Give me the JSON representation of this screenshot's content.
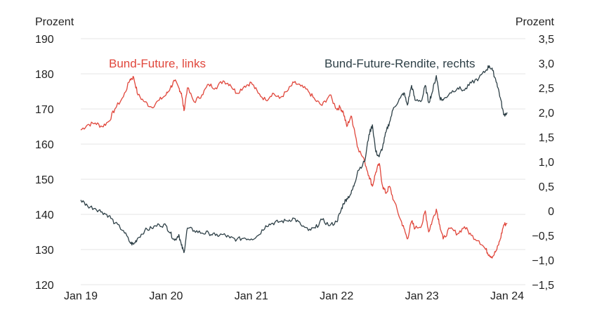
{
  "chart_data": {
    "type": "line",
    "y_left_label": "Prozent",
    "y_right_label": "Prozent",
    "x_ticks": [
      "Jan 19",
      "Jan 20",
      "Jan 21",
      "Jan 22",
      "Jan 23",
      "Jan 24"
    ],
    "y_left_ticks": [
      "190",
      "180",
      "170",
      "160",
      "150",
      "140",
      "130",
      "120"
    ],
    "y_right_ticks": [
      "3,5",
      "3,0",
      "2,5",
      "2,0",
      "1,5",
      "1,0",
      "0,5",
      "0",
      "−0,5",
      "−1,0",
      "−1,5"
    ],
    "ylim_left": [
      120,
      190
    ],
    "ylim_right": [
      -1.5,
      3.5
    ],
    "xlim": [
      2019.0,
      2024.0
    ],
    "grid": true,
    "series": [
      {
        "name": "Bund-Future, links",
        "axis": "left",
        "color": "#e0463b",
        "points": [
          [
            2019.0,
            164.0
          ],
          [
            2019.08,
            165.5
          ],
          [
            2019.17,
            166.0
          ],
          [
            2019.25,
            165.0
          ],
          [
            2019.33,
            166.5
          ],
          [
            2019.4,
            170.0
          ],
          [
            2019.5,
            173.5
          ],
          [
            2019.58,
            178.5
          ],
          [
            2019.62,
            179.0
          ],
          [
            2019.67,
            174.0
          ],
          [
            2019.75,
            172.0
          ],
          [
            2019.83,
            170.5
          ],
          [
            2019.92,
            172.5
          ],
          [
            2020.0,
            174.0
          ],
          [
            2020.05,
            176.0
          ],
          [
            2020.1,
            178.0
          ],
          [
            2020.15,
            176.0
          ],
          [
            2020.18,
            174.5
          ],
          [
            2020.21,
            169.5
          ],
          [
            2020.25,
            176.0
          ],
          [
            2020.33,
            172.0
          ],
          [
            2020.42,
            174.0
          ],
          [
            2020.5,
            177.0
          ],
          [
            2020.58,
            176.0
          ],
          [
            2020.67,
            178.0
          ],
          [
            2020.75,
            177.0
          ],
          [
            2020.83,
            174.5
          ],
          [
            2020.92,
            176.5
          ],
          [
            2021.0,
            177.5
          ],
          [
            2021.08,
            174.5
          ],
          [
            2021.17,
            172.5
          ],
          [
            2021.25,
            174.5
          ],
          [
            2021.33,
            173.0
          ],
          [
            2021.42,
            175.0
          ],
          [
            2021.5,
            177.5
          ],
          [
            2021.58,
            176.5
          ],
          [
            2021.67,
            175.0
          ],
          [
            2021.75,
            172.5
          ],
          [
            2021.83,
            171.0
          ],
          [
            2021.92,
            174.0
          ],
          [
            2022.0,
            170.0
          ],
          [
            2022.04,
            170.5
          ],
          [
            2022.08,
            169.0
          ],
          [
            2022.12,
            165.0
          ],
          [
            2022.17,
            168.0
          ],
          [
            2022.21,
            164.0
          ],
          [
            2022.25,
            159.0
          ],
          [
            2022.33,
            155.0
          ],
          [
            2022.38,
            151.0
          ],
          [
            2022.42,
            148.0
          ],
          [
            2022.46,
            152.0
          ],
          [
            2022.5,
            154.5
          ],
          [
            2022.54,
            148.0
          ],
          [
            2022.58,
            146.0
          ],
          [
            2022.62,
            148.0
          ],
          [
            2022.67,
            144.0
          ],
          [
            2022.75,
            138.5
          ],
          [
            2022.79,
            136.0
          ],
          [
            2022.83,
            133.0
          ],
          [
            2022.88,
            138.0
          ],
          [
            2022.92,
            136.0
          ],
          [
            2023.0,
            137.0
          ],
          [
            2023.04,
            141.0
          ],
          [
            2023.08,
            135.0
          ],
          [
            2023.12,
            138.0
          ],
          [
            2023.17,
            141.5
          ],
          [
            2023.21,
            137.0
          ],
          [
            2023.25,
            133.0
          ],
          [
            2023.33,
            136.0
          ],
          [
            2023.42,
            134.5
          ],
          [
            2023.5,
            136.5
          ],
          [
            2023.58,
            134.0
          ],
          [
            2023.67,
            132.5
          ],
          [
            2023.75,
            130.0
          ],
          [
            2023.79,
            128.5
          ],
          [
            2023.83,
            128.0
          ],
          [
            2023.88,
            130.0
          ],
          [
            2023.92,
            133.0
          ],
          [
            2023.96,
            137.0
          ],
          [
            2024.0,
            137.5
          ]
        ]
      },
      {
        "name": "Bund-Future-Rendite, rechts",
        "axis": "right",
        "color": "#2e4047",
        "points": [
          [
            2019.0,
            0.22
          ],
          [
            2019.08,
            0.1
          ],
          [
            2019.17,
            0.05
          ],
          [
            2019.25,
            -0.02
          ],
          [
            2019.33,
            -0.1
          ],
          [
            2019.4,
            -0.25
          ],
          [
            2019.5,
            -0.4
          ],
          [
            2019.58,
            -0.65
          ],
          [
            2019.62,
            -0.68
          ],
          [
            2019.67,
            -0.55
          ],
          [
            2019.75,
            -0.4
          ],
          [
            2019.83,
            -0.35
          ],
          [
            2019.92,
            -0.28
          ],
          [
            2020.0,
            -0.3
          ],
          [
            2020.05,
            -0.45
          ],
          [
            2020.1,
            -0.6
          ],
          [
            2020.15,
            -0.48
          ],
          [
            2020.18,
            -0.7
          ],
          [
            2020.21,
            -0.85
          ],
          [
            2020.25,
            -0.35
          ],
          [
            2020.33,
            -0.4
          ],
          [
            2020.42,
            -0.45
          ],
          [
            2020.5,
            -0.45
          ],
          [
            2020.58,
            -0.5
          ],
          [
            2020.67,
            -0.48
          ],
          [
            2020.75,
            -0.55
          ],
          [
            2020.83,
            -0.58
          ],
          [
            2020.92,
            -0.55
          ],
          [
            2021.0,
            -0.57
          ],
          [
            2021.08,
            -0.5
          ],
          [
            2021.17,
            -0.3
          ],
          [
            2021.25,
            -0.25
          ],
          [
            2021.33,
            -0.22
          ],
          [
            2021.42,
            -0.2
          ],
          [
            2021.5,
            -0.15
          ],
          [
            2021.58,
            -0.28
          ],
          [
            2021.67,
            -0.4
          ],
          [
            2021.75,
            -0.35
          ],
          [
            2021.83,
            -0.18
          ],
          [
            2021.92,
            -0.3
          ],
          [
            2022.0,
            -0.22
          ],
          [
            2022.04,
            -0.05
          ],
          [
            2022.08,
            0.15
          ],
          [
            2022.12,
            0.25
          ],
          [
            2022.17,
            0.35
          ],
          [
            2022.21,
            0.55
          ],
          [
            2022.25,
            0.82
          ],
          [
            2022.33,
            1.0
          ],
          [
            2022.38,
            1.55
          ],
          [
            2022.42,
            1.75
          ],
          [
            2022.46,
            1.2
          ],
          [
            2022.5,
            1.1
          ],
          [
            2022.54,
            1.3
          ],
          [
            2022.58,
            1.6
          ],
          [
            2022.62,
            1.8
          ],
          [
            2022.67,
            2.1
          ],
          [
            2022.75,
            2.3
          ],
          [
            2022.79,
            2.4
          ],
          [
            2022.83,
            2.15
          ],
          [
            2022.88,
            2.55
          ],
          [
            2022.92,
            2.25
          ],
          [
            2023.0,
            2.25
          ],
          [
            2023.04,
            2.55
          ],
          [
            2023.08,
            2.2
          ],
          [
            2023.12,
            2.4
          ],
          [
            2023.17,
            2.75
          ],
          [
            2023.21,
            2.3
          ],
          [
            2023.25,
            2.25
          ],
          [
            2023.33,
            2.4
          ],
          [
            2023.42,
            2.5
          ],
          [
            2023.5,
            2.45
          ],
          [
            2023.58,
            2.6
          ],
          [
            2023.67,
            2.7
          ],
          [
            2023.75,
            2.85
          ],
          [
            2023.79,
            2.95
          ],
          [
            2023.83,
            2.85
          ],
          [
            2023.88,
            2.6
          ],
          [
            2023.92,
            2.3
          ],
          [
            2023.96,
            1.95
          ],
          [
            2024.0,
            2.0
          ]
        ]
      }
    ]
  }
}
